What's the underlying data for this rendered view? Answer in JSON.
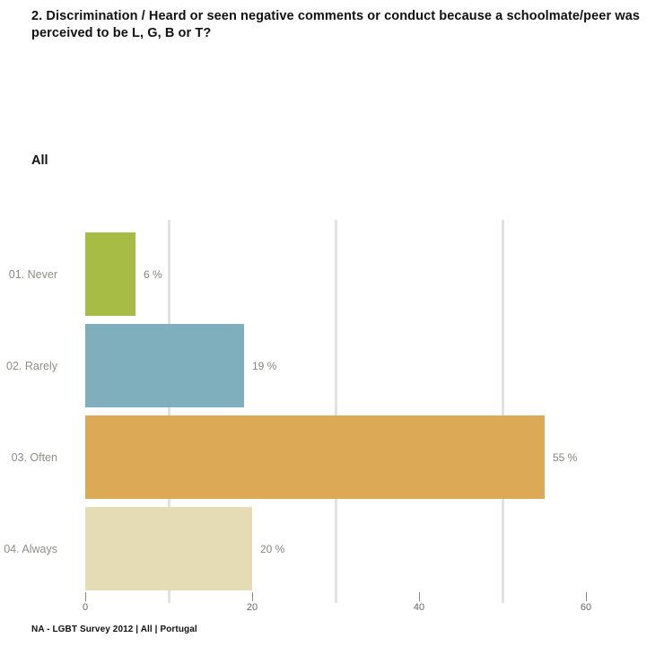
{
  "title": "2. Discrimination / Heard or seen negative comments or conduct because a schoolmate/peer was perceived to be L, G, B or T?",
  "subtitle": "All",
  "footer": "NA - LGBT Survey 2012 | All | Portugal",
  "colors": {
    "background": "#ffffff",
    "title_text": "#111111",
    "category_label_text": "#8e8e86",
    "value_label_text": "#84847c",
    "tick_text": "#666666",
    "tick_mark": "#888888",
    "gridline": "#e2e2e2"
  },
  "chart_data": {
    "type": "bar",
    "orientation": "horizontal",
    "title": "2. Discrimination / Heard or seen negative comments or conduct because a schoolmate/peer was perceived to be L, G, B or T?",
    "subtitle": "All",
    "source_note": "NA - LGBT Survey 2012 | All | Portugal",
    "categories": [
      "01. Never",
      "02. Rarely",
      "03. Often",
      "04. Always"
    ],
    "values": [
      6,
      19,
      55,
      20
    ],
    "value_labels": [
      "6 %",
      "19 %",
      "55 %",
      "20 %"
    ],
    "bar_colors": [
      "#a6bc45",
      "#7fafbc",
      "#dcaa57",
      "#e5dcb6"
    ],
    "xlabel": "",
    "ylabel": "",
    "xlim": [
      0,
      60
    ],
    "xticks": [
      0,
      20,
      40,
      60
    ],
    "gridline_values": [
      10,
      30,
      50
    ],
    "legend": "none",
    "grid": "vertical-light"
  }
}
